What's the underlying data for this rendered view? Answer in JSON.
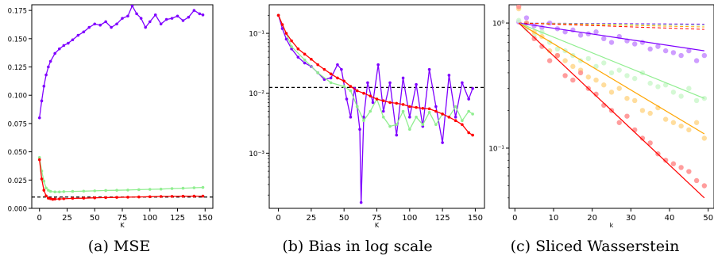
{
  "captions": [
    "(a) MSE",
    "(b) Bias in log scale",
    "(c) Sliced Wasserstein"
  ],
  "chart_data": [
    {
      "type": "line",
      "title": "",
      "xlabel": "K",
      "ylabel": "",
      "xlim": [
        -7,
        157
      ],
      "ylim": [
        0.0,
        0.18
      ],
      "xticks": [
        0,
        25,
        50,
        75,
        100,
        125,
        150
      ],
      "yticks": [
        0.0,
        0.025,
        0.05,
        0.075,
        0.1,
        0.125,
        0.15,
        0.175
      ],
      "ytick_labels": [
        "0.000",
        "0.025",
        "0.050",
        "0.075",
        "0.100",
        "0.125",
        "0.150",
        "0.175"
      ],
      "reference_line": {
        "y": 0.01,
        "style": "dashed",
        "color": "#000000"
      },
      "series": [
        {
          "color": "#7f00ff",
          "x": [
            0,
            2,
            4,
            6,
            8,
            10,
            14,
            18,
            22,
            26,
            30,
            35,
            40,
            45,
            50,
            55,
            60,
            65,
            70,
            75,
            80,
            84,
            88,
            92,
            96,
            100,
            105,
            110,
            115,
            120,
            125,
            130,
            135,
            140,
            145,
            148
          ],
          "values": [
            0.08,
            0.095,
            0.108,
            0.118,
            0.125,
            0.13,
            0.137,
            0.141,
            0.144,
            0.146,
            0.149,
            0.153,
            0.156,
            0.16,
            0.163,
            0.162,
            0.165,
            0.16,
            0.163,
            0.168,
            0.17,
            0.179,
            0.172,
            0.168,
            0.16,
            0.165,
            0.171,
            0.163,
            0.167,
            0.168,
            0.17,
            0.166,
            0.169,
            0.175,
            0.172,
            0.171
          ]
        },
        {
          "color": "#90ee90",
          "x": [
            0,
            2,
            4,
            6,
            8,
            10,
            14,
            18,
            22,
            30,
            40,
            50,
            60,
            70,
            80,
            90,
            100,
            110,
            120,
            130,
            140,
            148
          ],
          "values": [
            0.045,
            0.033,
            0.024,
            0.018,
            0.016,
            0.015,
            0.0145,
            0.0145,
            0.0148,
            0.015,
            0.0152,
            0.0155,
            0.0158,
            0.016,
            0.0162,
            0.0165,
            0.0168,
            0.017,
            0.0175,
            0.0178,
            0.0182,
            0.0185
          ]
        },
        {
          "color": "#ff0000",
          "x": [
            0,
            2,
            4,
            6,
            8,
            10,
            12,
            14,
            18,
            22,
            30,
            40,
            50,
            60,
            70,
            80,
            90,
            100,
            110,
            120,
            130,
            140,
            148
          ],
          "values": [
            0.043,
            0.026,
            0.016,
            0.011,
            0.009,
            0.0085,
            0.008,
            0.0082,
            0.0083,
            0.0085,
            0.0088,
            0.009,
            0.0093,
            0.0095,
            0.0097,
            0.0099,
            0.0101,
            0.0103,
            0.0105,
            0.0106,
            0.0107,
            0.0108,
            0.0108
          ]
        }
      ]
    },
    {
      "type": "line",
      "title": "",
      "xlabel": "K",
      "ylabel": "",
      "yscale": "log",
      "xlim": [
        -7,
        157
      ],
      "ylim": [
        0.00012,
        0.3
      ],
      "xticks": [
        0,
        25,
        50,
        75,
        100,
        125,
        150
      ],
      "yticks": [
        0.001,
        0.01,
        0.1
      ],
      "ytick_labels": [
        "10⁻³",
        "10⁻²",
        "10⁻¹"
      ],
      "reference_line": {
        "y": 0.0125,
        "style": "dashed",
        "color": "#000000"
      },
      "series": [
        {
          "color": "#7f00ff",
          "x": [
            0,
            3,
            6,
            10,
            15,
            20,
            25,
            30,
            35,
            40,
            45,
            48,
            52,
            55,
            58,
            60,
            62,
            63,
            65,
            68,
            72,
            76,
            80,
            85,
            90,
            95,
            100,
            105,
            110,
            115,
            120,
            125,
            130,
            135,
            140,
            145,
            148
          ],
          "values": [
            0.2,
            0.12,
            0.08,
            0.055,
            0.04,
            0.032,
            0.028,
            0.022,
            0.017,
            0.018,
            0.03,
            0.025,
            0.008,
            0.004,
            0.012,
            0.006,
            0.0025,
            0.00015,
            0.004,
            0.015,
            0.007,
            0.03,
            0.005,
            0.015,
            0.002,
            0.018,
            0.004,
            0.014,
            0.0028,
            0.025,
            0.006,
            0.0015,
            0.02,
            0.004,
            0.015,
            0.008,
            0.012
          ]
        },
        {
          "color": "#90ee90",
          "x": [
            0,
            10,
            20,
            30,
            40,
            50,
            55,
            60,
            65,
            70,
            75,
            80,
            85,
            90,
            95,
            100,
            105,
            110,
            115,
            120,
            125,
            130,
            135,
            140,
            145,
            148
          ],
          "values": [
            0.2,
            0.06,
            0.036,
            0.022,
            0.015,
            0.013,
            0.011,
            0.006,
            0.0035,
            0.005,
            0.008,
            0.004,
            0.0028,
            0.003,
            0.005,
            0.0025,
            0.004,
            0.003,
            0.0048,
            0.003,
            0.0045,
            0.004,
            0.006,
            0.0035,
            0.005,
            0.0045
          ]
        },
        {
          "color": "#ff0000",
          "x": [
            0,
            3,
            6,
            10,
            15,
            20,
            25,
            30,
            35,
            40,
            45,
            50,
            55,
            60,
            65,
            70,
            75,
            80,
            85,
            90,
            95,
            100,
            105,
            110,
            115,
            120,
            125,
            130,
            135,
            140,
            145,
            148
          ],
          "values": [
            0.2,
            0.14,
            0.1,
            0.075,
            0.055,
            0.045,
            0.037,
            0.03,
            0.025,
            0.021,
            0.018,
            0.016,
            0.013,
            0.011,
            0.01,
            0.009,
            0.008,
            0.0075,
            0.007,
            0.0068,
            0.0065,
            0.006,
            0.0058,
            0.0056,
            0.0055,
            0.005,
            0.0045,
            0.004,
            0.0035,
            0.003,
            0.0022,
            0.002
          ]
        }
      ]
    },
    {
      "type": "scatter",
      "title": "",
      "xlabel": "k",
      "ylabel": "",
      "yscale": "log",
      "xlim": [
        -1.5,
        51.5
      ],
      "ylim": [
        0.033,
        1.4
      ],
      "xticks": [
        0,
        10,
        20,
        30,
        40,
        50
      ],
      "yticks": [
        0.1,
        1.0
      ],
      "ytick_labels": [
        "10⁻¹",
        "10⁰"
      ],
      "x_range": [
        1,
        49
      ],
      "series": [
        {
          "color": "#7f00ff",
          "fit": [
            1.0,
            0.6
          ],
          "x": [
            1,
            3,
            5,
            7,
            9,
            11,
            13,
            15,
            17,
            19,
            21,
            23,
            25,
            27,
            29,
            31,
            33,
            35,
            37,
            39,
            41,
            43,
            45,
            47,
            49
          ],
          "values": [
            1.02,
            1.1,
            0.95,
            0.92,
            1.0,
            0.9,
            0.85,
            0.88,
            0.8,
            0.82,
            0.85,
            0.75,
            0.7,
            0.78,
            0.72,
            0.68,
            0.7,
            0.62,
            0.65,
            0.6,
            0.58,
            0.55,
            0.6,
            0.5,
            0.55
          ]
        },
        {
          "color": "#90ee90",
          "fit": [
            1.0,
            0.25
          ],
          "x": [
            1,
            3,
            5,
            7,
            9,
            11,
            13,
            15,
            17,
            19,
            21,
            23,
            25,
            27,
            29,
            31,
            33,
            35,
            37,
            39,
            41,
            43,
            45,
            47,
            49
          ],
          "values": [
            1.05,
            0.9,
            0.8,
            0.85,
            0.7,
            0.62,
            0.6,
            0.55,
            0.5,
            0.52,
            0.45,
            0.48,
            0.4,
            0.42,
            0.38,
            0.36,
            0.4,
            0.33,
            0.31,
            0.32,
            0.28,
            0.26,
            0.3,
            0.24,
            0.25
          ]
        },
        {
          "color": "#ffa500",
          "fit": [
            1.0,
            0.13
          ],
          "x": [
            1,
            3,
            5,
            7,
            9,
            11,
            13,
            15,
            17,
            19,
            21,
            23,
            25,
            27,
            29,
            31,
            33,
            35,
            37,
            39,
            41,
            43,
            45,
            47,
            49
          ],
          "values": [
            1.3,
            1.0,
            0.85,
            0.78,
            0.6,
            0.55,
            0.5,
            0.45,
            0.42,
            0.37,
            0.35,
            0.32,
            0.28,
            0.3,
            0.25,
            0.24,
            0.2,
            0.19,
            0.21,
            0.17,
            0.16,
            0.15,
            0.14,
            0.16,
            0.12
          ]
        },
        {
          "color": "#ff0000",
          "fit": [
            1.0,
            0.04
          ],
          "x": [
            1,
            3,
            5,
            7,
            9,
            11,
            13,
            15,
            17,
            19,
            21,
            23,
            25,
            27,
            29,
            31,
            33,
            35,
            37,
            39,
            41,
            43,
            45,
            47,
            49
          ],
          "values": [
            1.35,
            1.0,
            0.75,
            0.65,
            0.5,
            0.55,
            0.38,
            0.35,
            0.4,
            0.3,
            0.27,
            0.22,
            0.2,
            0.16,
            0.18,
            0.14,
            0.12,
            0.11,
            0.09,
            0.08,
            0.075,
            0.07,
            0.065,
            0.055,
            0.05
          ]
        }
      ],
      "dashed_lines": [
        {
          "color": "#7f00ff",
          "y_start": 1.0,
          "y_end": 0.98
        },
        {
          "color": "#90ee90",
          "y_start": 1.0,
          "y_end": 0.96
        },
        {
          "color": "#ffa500",
          "y_start": 1.0,
          "y_end": 0.93
        },
        {
          "color": "#ff0000",
          "y_start": 1.0,
          "y_end": 0.89
        }
      ]
    }
  ]
}
